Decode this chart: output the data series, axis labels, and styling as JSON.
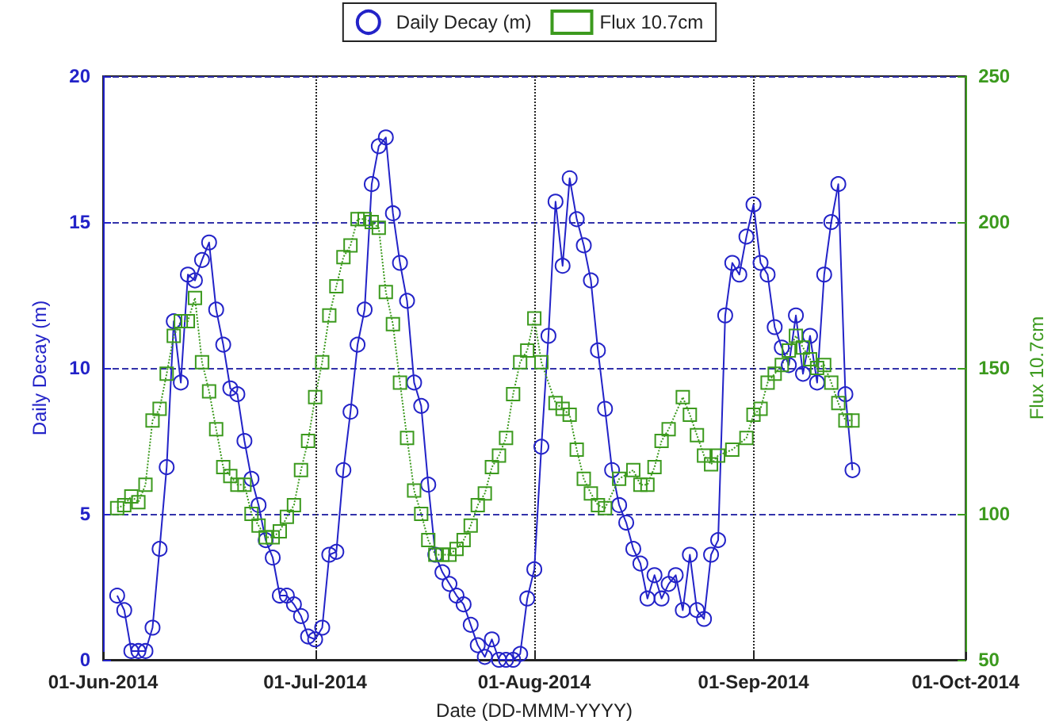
{
  "chart_data": {
    "type": "line",
    "xlabel": "Date (DD-MMM-YYYY)",
    "ylabel": "Daily Decay (m)",
    "y2label": "Flux 10.7cm",
    "xlim": [
      "2014-06-01",
      "2014-10-01"
    ],
    "xticks": [
      {
        "value": "2014-06-01",
        "label": "01-Jun-2014"
      },
      {
        "value": "2014-07-01",
        "label": "01-Jul-2014"
      },
      {
        "value": "2014-08-01",
        "label": "01-Aug-2014"
      },
      {
        "value": "2014-09-01",
        "label": "01-Sep-2014"
      },
      {
        "value": "2014-10-01",
        "label": "01-Oct-2014"
      }
    ],
    "ylim": [
      0,
      20
    ],
    "yticks": [
      0,
      5,
      10,
      15,
      20
    ],
    "y2lim": [
      50,
      250
    ],
    "y2ticks": [
      50,
      100,
      150,
      200,
      250
    ],
    "grid": true,
    "legend": "top",
    "series": [
      {
        "name": "Daily Decay (m)",
        "color": "#2323c8",
        "marker": "circle",
        "line_style": "solid",
        "axis": "y",
        "x": [
          "2014-06-03",
          "2014-06-04",
          "2014-06-05",
          "2014-06-06",
          "2014-06-07",
          "2014-06-08",
          "2014-06-09",
          "2014-06-10",
          "2014-06-11",
          "2014-06-12",
          "2014-06-13",
          "2014-06-14",
          "2014-06-15",
          "2014-06-16",
          "2014-06-17",
          "2014-06-18",
          "2014-06-19",
          "2014-06-20",
          "2014-06-21",
          "2014-06-22",
          "2014-06-23",
          "2014-06-24",
          "2014-06-25",
          "2014-06-26",
          "2014-06-27",
          "2014-06-28",
          "2014-06-29",
          "2014-06-30",
          "2014-07-01",
          "2014-07-02",
          "2014-07-03",
          "2014-07-04",
          "2014-07-05",
          "2014-07-06",
          "2014-07-07",
          "2014-07-08",
          "2014-07-09",
          "2014-07-10",
          "2014-07-11",
          "2014-07-12",
          "2014-07-13",
          "2014-07-14",
          "2014-07-15",
          "2014-07-16",
          "2014-07-17",
          "2014-07-18",
          "2014-07-19",
          "2014-07-20",
          "2014-07-21",
          "2014-07-22",
          "2014-07-23",
          "2014-07-24",
          "2014-07-25",
          "2014-07-26",
          "2014-07-27",
          "2014-07-28",
          "2014-07-29",
          "2014-07-30",
          "2014-07-31",
          "2014-08-01",
          "2014-08-02",
          "2014-08-03",
          "2014-08-04",
          "2014-08-05",
          "2014-08-06",
          "2014-08-07",
          "2014-08-08",
          "2014-08-09",
          "2014-08-10",
          "2014-08-11",
          "2014-08-12",
          "2014-08-13",
          "2014-08-14",
          "2014-08-15",
          "2014-08-16",
          "2014-08-17",
          "2014-08-18",
          "2014-08-19",
          "2014-08-20",
          "2014-08-21",
          "2014-08-22",
          "2014-08-23",
          "2014-08-24",
          "2014-08-25",
          "2014-08-26",
          "2014-08-27",
          "2014-08-28",
          "2014-08-29",
          "2014-08-30",
          "2014-08-31",
          "2014-09-01",
          "2014-09-02",
          "2014-09-03",
          "2014-09-04",
          "2014-09-05",
          "2014-09-06",
          "2014-09-07",
          "2014-09-08",
          "2014-09-09",
          "2014-09-10",
          "2014-09-11",
          "2014-09-12",
          "2014-09-13",
          "2014-09-14",
          "2014-09-15"
        ],
        "values": [
          2.2,
          1.7,
          0.3,
          0.3,
          0.3,
          1.1,
          3.8,
          6.6,
          11.6,
          9.5,
          13.2,
          13.0,
          13.7,
          14.3,
          12.0,
          10.8,
          9.3,
          9.1,
          7.5,
          6.2,
          5.3,
          4.1,
          3.5,
          2.2,
          2.2,
          1.9,
          1.5,
          0.8,
          0.7,
          1.1,
          3.6,
          3.7,
          6.5,
          8.5,
          10.8,
          12.0,
          16.3,
          17.6,
          17.9,
          15.3,
          13.6,
          12.3,
          9.5,
          8.7,
          6.0,
          3.6,
          3.0,
          2.6,
          2.2,
          1.9,
          1.2,
          0.5,
          0.1,
          0.7,
          0,
          0,
          0,
          0.2,
          2.1,
          3.1,
          7.3,
          11.1,
          15.7,
          13.5,
          16.5,
          15.1,
          14.2,
          13.0,
          10.6,
          8.6,
          6.5,
          5.3,
          4.7,
          3.8,
          3.3,
          2.1,
          2.9,
          2.1,
          2.6,
          2.9,
          1.7,
          3.6,
          1.7,
          1.4,
          3.6,
          4.1,
          11.8,
          13.6,
          13.2,
          14.5,
          15.6,
          13.6,
          13.2,
          11.4,
          10.7,
          10.1,
          11.8,
          9.8,
          11.1,
          9.5,
          13.2,
          15.0,
          16.3,
          9.1,
          6.5
        ]
      },
      {
        "name": "Flux 10.7cm",
        "color": "#3c9a1e",
        "marker": "square",
        "line_style": "dotted",
        "axis": "y2",
        "x": [
          "2014-06-03",
          "2014-06-04",
          "2014-06-05",
          "2014-06-06",
          "2014-06-07",
          "2014-06-08",
          "2014-06-09",
          "2014-06-10",
          "2014-06-11",
          "2014-06-12",
          "2014-06-13",
          "2014-06-14",
          "2014-06-15",
          "2014-06-16",
          "2014-06-17",
          "2014-06-18",
          "2014-06-19",
          "2014-06-20",
          "2014-06-21",
          "2014-06-22",
          "2014-06-23",
          "2014-06-24",
          "2014-06-25",
          "2014-06-26",
          "2014-06-27",
          "2014-06-28",
          "2014-06-29",
          "2014-06-30",
          "2014-07-01",
          "2014-07-02",
          "2014-07-03",
          "2014-07-04",
          "2014-07-05",
          "2014-07-06",
          "2014-07-07",
          "2014-07-08",
          "2014-07-09",
          "2014-07-10",
          "2014-07-11",
          "2014-07-12",
          "2014-07-13",
          "2014-07-14",
          "2014-07-15",
          "2014-07-16",
          "2014-07-17",
          "2014-07-18",
          "2014-07-19",
          "2014-07-20",
          "2014-07-21",
          "2014-07-22",
          "2014-07-23",
          "2014-07-24",
          "2014-07-25",
          "2014-07-26",
          "2014-07-27",
          "2014-07-28",
          "2014-07-29",
          "2014-07-30",
          "2014-07-31",
          "2014-08-01",
          "2014-08-02",
          "2014-08-04",
          "2014-08-05",
          "2014-08-06",
          "2014-08-07",
          "2014-08-08",
          "2014-08-09",
          "2014-08-10",
          "2014-08-11",
          "2014-08-13",
          "2014-08-15",
          "2014-08-16",
          "2014-08-17",
          "2014-08-18",
          "2014-08-19",
          "2014-08-20",
          "2014-08-22",
          "2014-08-23",
          "2014-08-24",
          "2014-08-25",
          "2014-08-26",
          "2014-08-27",
          "2014-08-29",
          "2014-08-31",
          "2014-09-01",
          "2014-09-02",
          "2014-09-03",
          "2014-09-04",
          "2014-09-05",
          "2014-09-06",
          "2014-09-07",
          "2014-09-08",
          "2014-09-09",
          "2014-09-10",
          "2014-09-11",
          "2014-09-12",
          "2014-09-13",
          "2014-09-14",
          "2014-09-15"
        ],
        "values": [
          102,
          103,
          106,
          104,
          110,
          132,
          136,
          148,
          161,
          166,
          166,
          174,
          152,
          142,
          129,
          116,
          113,
          110,
          110,
          100,
          96,
          92,
          92,
          94,
          99,
          103,
          115,
          125,
          140,
          152,
          168,
          178,
          188,
          192,
          201,
          201,
          200,
          198,
          176,
          165,
          145,
          126,
          108,
          100,
          91,
          86,
          86,
          86,
          88,
          91,
          96,
          103,
          107,
          116,
          120,
          126,
          141,
          152,
          156,
          167,
          152,
          138,
          136,
          134,
          122,
          112,
          107,
          103,
          102,
          112,
          115,
          110,
          110,
          116,
          125,
          129,
          140,
          134,
          127,
          120,
          117,
          120,
          122,
          126,
          134,
          136,
          145,
          148,
          151,
          156,
          161,
          157,
          153,
          150,
          151,
          145,
          138,
          132,
          132
        ]
      }
    ]
  }
}
